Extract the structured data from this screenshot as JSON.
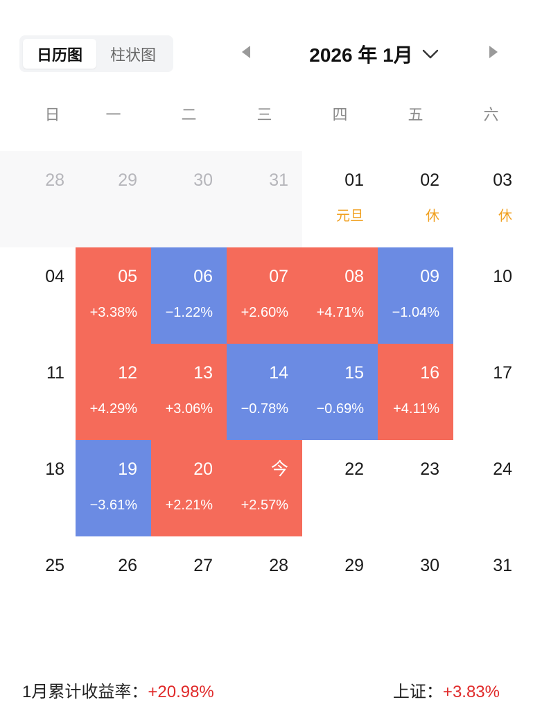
{
  "tabs": [
    {
      "label": "日历图",
      "active": true
    },
    {
      "label": "柱状图",
      "active": false
    }
  ],
  "header": {
    "month_title": "2026 年 1月",
    "prev_icon": "triangle-left-icon",
    "next_icon": "triangle-right-icon",
    "dropdown_icon": "chevron-down-icon"
  },
  "weekdays": [
    "日",
    "一",
    "二",
    "三",
    "四",
    "五",
    "六"
  ],
  "colors": {
    "up": "#f56b5a",
    "down": "#6b8be3",
    "holiday": "#f0a020",
    "prev_month_bg": "#f8f8f9",
    "positive_text": "#e02a2a"
  },
  "weeks": [
    [
      {
        "day": "28",
        "state": "prev"
      },
      {
        "day": "29",
        "state": "prev"
      },
      {
        "day": "30",
        "state": "prev"
      },
      {
        "day": "31",
        "state": "prev"
      },
      {
        "day": "01",
        "state": "holiday",
        "sub": "元旦"
      },
      {
        "day": "02",
        "state": "holiday",
        "sub": "休"
      },
      {
        "day": "03",
        "state": "holiday",
        "sub": "休"
      }
    ],
    [
      {
        "day": "04",
        "state": "normal"
      },
      {
        "day": "05",
        "state": "up",
        "sub": "+3.38%"
      },
      {
        "day": "06",
        "state": "down",
        "sub": "−1.22%"
      },
      {
        "day": "07",
        "state": "up",
        "sub": "+2.60%"
      },
      {
        "day": "08",
        "state": "up",
        "sub": "+4.71%"
      },
      {
        "day": "09",
        "state": "down",
        "sub": "−1.04%"
      },
      {
        "day": "10",
        "state": "normal"
      }
    ],
    [
      {
        "day": "11",
        "state": "normal"
      },
      {
        "day": "12",
        "state": "up",
        "sub": "+4.29%"
      },
      {
        "day": "13",
        "state": "up",
        "sub": "+3.06%"
      },
      {
        "day": "14",
        "state": "down",
        "sub": "−0.78%"
      },
      {
        "day": "15",
        "state": "down",
        "sub": "−0.69%"
      },
      {
        "day": "16",
        "state": "up",
        "sub": "+4.11%"
      },
      {
        "day": "17",
        "state": "normal"
      }
    ],
    [
      {
        "day": "18",
        "state": "normal"
      },
      {
        "day": "19",
        "state": "down",
        "sub": "−3.61%"
      },
      {
        "day": "20",
        "state": "up",
        "sub": "+2.21%"
      },
      {
        "day": "今",
        "state": "up",
        "sub": "+2.57%"
      },
      {
        "day": "22",
        "state": "normal"
      },
      {
        "day": "23",
        "state": "normal"
      },
      {
        "day": "24",
        "state": "normal"
      }
    ],
    [
      {
        "day": "25",
        "state": "normal"
      },
      {
        "day": "26",
        "state": "normal"
      },
      {
        "day": "27",
        "state": "normal"
      },
      {
        "day": "28",
        "state": "normal"
      },
      {
        "day": "29",
        "state": "normal"
      },
      {
        "day": "30",
        "state": "normal"
      },
      {
        "day": "31",
        "state": "normal"
      }
    ]
  ],
  "footer": {
    "cumulative_label": "1月累计收益率：",
    "cumulative_value": "+20.98%",
    "index_label": "上证：",
    "index_value": "+3.83%"
  }
}
